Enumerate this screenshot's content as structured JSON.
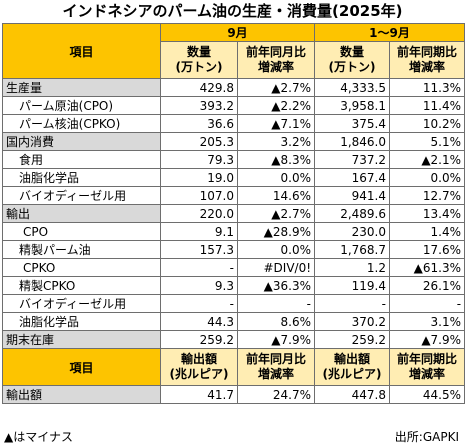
{
  "title": "インドネシアのパーム油の生産・消費量(2025年)",
  "header": {
    "item": "項目",
    "period_sep": "9月",
    "period_ytd": "1〜9月",
    "col_volume": "数量\n(万トン)",
    "col_change_sep": "前年同月比\n増減率",
    "col_change_ytd": "前年同期比\n増減率"
  },
  "rows": [
    {
      "label": "生産量",
      "v1": "429.8",
      "c1": "▲2.7%",
      "v2": "4,333.5",
      "c2": "11.3%",
      "level": 0,
      "shade": true
    },
    {
      "label": "パーム原油(CPO)",
      "v1": "393.2",
      "c1": "▲2.2%",
      "v2": "3,958.1",
      "c2": "11.4%",
      "level": 1,
      "shade": false
    },
    {
      "label": "パーム核油(CPKO)",
      "v1": "36.6",
      "c1": "▲7.1%",
      "v2": "375.4",
      "c2": "10.2%",
      "level": 1,
      "shade": false
    },
    {
      "label": "国内消費",
      "v1": "205.3",
      "c1": "3.2%",
      "v2": "1,846.0",
      "c2": "5.1%",
      "level": 0,
      "shade": true
    },
    {
      "label": "食用",
      "v1": "79.3",
      "c1": "▲8.3%",
      "v2": "737.2",
      "c2": "▲2.1%",
      "level": 1,
      "shade": false
    },
    {
      "label": "油脂化学品",
      "v1": "19.0",
      "c1": "0.0%",
      "v2": "167.4",
      "c2": "0.0%",
      "level": 1,
      "shade": false
    },
    {
      "label": "バイオディーゼル用",
      "v1": "107.0",
      "c1": "14.6%",
      "v2": "941.4",
      "c2": "12.7%",
      "level": 1,
      "shade": false
    },
    {
      "label": "輸出",
      "v1": "220.0",
      "c1": "▲2.7%",
      "v2": "2,489.6",
      "c2": "13.4%",
      "level": 0,
      "shade": true
    },
    {
      "label": "CPO",
      "v1": "9.1",
      "c1": "▲28.9%",
      "v2": "230.0",
      "c2": "1.4%",
      "level": 2,
      "shade": false
    },
    {
      "label": "精製パーム油",
      "v1": "157.3",
      "c1": "0.0%",
      "v2": "1,768.7",
      "c2": "17.6%",
      "level": 1,
      "shade": false
    },
    {
      "label": "CPKO",
      "v1": "-",
      "c1": "#DIV/0!",
      "v2": "1.2",
      "c2": "▲61.3%",
      "level": 2,
      "shade": false
    },
    {
      "label": "精製CPKO",
      "v1": "9.3",
      "c1": "▲36.3%",
      "v2": "119.4",
      "c2": "26.1%",
      "level": 1,
      "shade": false
    },
    {
      "label": "バイオディーゼル用",
      "v1": "-",
      "c1": "-",
      "v2": "-",
      "c2": "-",
      "level": 1,
      "shade": false
    },
    {
      "label": "油脂化学品",
      "v1": "44.3",
      "c1": "8.6%",
      "v2": "370.2",
      "c2": "3.1%",
      "level": 1,
      "shade": false
    },
    {
      "label": "期末在庫",
      "v1": "259.2",
      "c1": "▲7.9%",
      "v2": "259.2",
      "c2": "▲7.9%",
      "level": 0,
      "shade": true
    }
  ],
  "export_header": {
    "item": "項目",
    "col_amount": "輸出額\n(兆ルピア)",
    "col_change_sep": "前年同月比\n増減率",
    "col_change_ytd": "前年同期比\n増減率"
  },
  "export_row": {
    "label": "輸出額",
    "v1": "41.7",
    "c1": "24.7%",
    "v2": "447.8",
    "c2": "44.5%"
  },
  "footnote_left": "▲はマイナス",
  "footnote_right": "出所:GAPKI",
  "colors": {
    "header_yellow": "#fdc400",
    "light_yellow": "#ffedb3",
    "label_gray": "#d9d9d9"
  }
}
